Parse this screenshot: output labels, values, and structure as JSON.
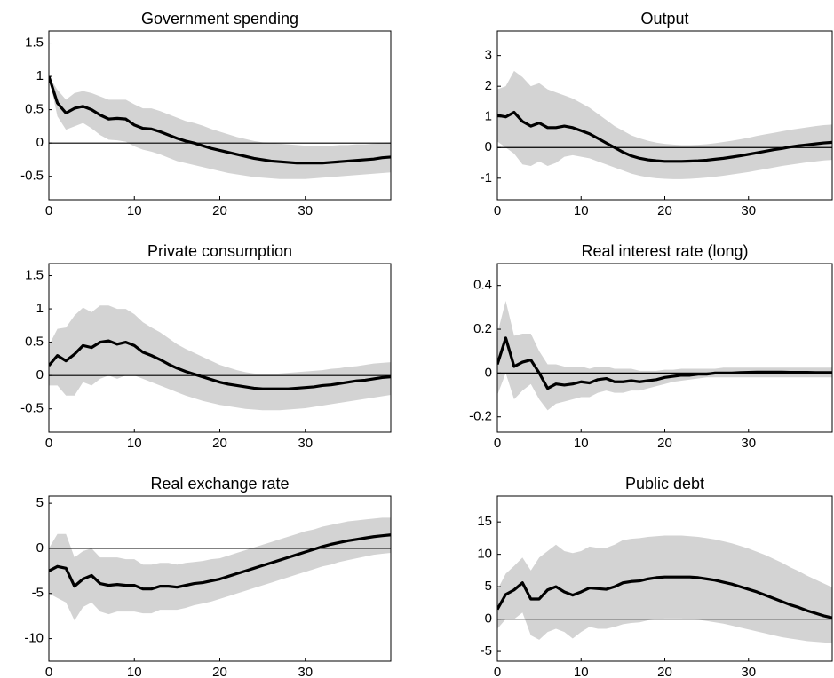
{
  "chart_data": [
    {
      "type": "line",
      "title": "Government spending",
      "color": "#000000",
      "band_color": "#d3d3d3",
      "reference_line": 0,
      "x": [
        0,
        1,
        2,
        3,
        4,
        5,
        6,
        7,
        8,
        9,
        10,
        11,
        12,
        13,
        14,
        15,
        16,
        17,
        18,
        19,
        20,
        21,
        22,
        23,
        24,
        25,
        26,
        27,
        28,
        29,
        30,
        31,
        32,
        33,
        34,
        35,
        36,
        37,
        38,
        39,
        40
      ],
      "values": [
        1,
        0.6,
        0.45,
        0.52,
        0.55,
        0.5,
        0.42,
        0.36,
        0.37,
        0.36,
        0.27,
        0.22,
        0.21,
        0.17,
        0.12,
        0.07,
        0.03,
        0,
        -0.04,
        -0.08,
        -0.11,
        -0.14,
        -0.17,
        -0.2,
        -0.23,
        -0.25,
        -0.27,
        -0.28,
        -0.29,
        -0.3,
        -0.3,
        -0.3,
        -0.3,
        -0.29,
        -0.28,
        -0.27,
        -0.26,
        -0.25,
        -0.24,
        -0.22,
        -0.21
      ],
      "lower": [
        1,
        0.4,
        0.2,
        0.25,
        0.3,
        0.22,
        0.12,
        0.05,
        0.04,
        0.02,
        -0.05,
        -0.1,
        -0.13,
        -0.17,
        -0.22,
        -0.27,
        -0.3,
        -0.33,
        -0.36,
        -0.39,
        -0.42,
        -0.45,
        -0.47,
        -0.49,
        -0.51,
        -0.52,
        -0.53,
        -0.54,
        -0.54,
        -0.54,
        -0.54,
        -0.53,
        -0.52,
        -0.51,
        -0.5,
        -0.49,
        -0.48,
        -0.47,
        -0.46,
        -0.45,
        -0.44
      ],
      "upper": [
        1,
        0.8,
        0.65,
        0.75,
        0.78,
        0.75,
        0.7,
        0.65,
        0.65,
        0.65,
        0.58,
        0.52,
        0.52,
        0.48,
        0.43,
        0.38,
        0.33,
        0.3,
        0.26,
        0.21,
        0.17,
        0.13,
        0.09,
        0.06,
        0.03,
        0.01,
        0,
        -0.01,
        -0.02,
        -0.03,
        -0.04,
        -0.04,
        -0.04,
        -0.04,
        -0.03,
        -0.03,
        -0.02,
        -0.02,
        -0.01,
        0,
        0.01
      ],
      "xlim": [
        0,
        40
      ],
      "xticks": [
        0,
        10,
        20,
        30
      ],
      "ylim": [
        -0.85,
        1.68
      ],
      "yticks": [
        -0.5,
        0,
        0.5,
        1,
        1.5
      ]
    },
    {
      "type": "line",
      "title": "Output",
      "color": "#000000",
      "band_color": "#d3d3d3",
      "reference_line": 0,
      "x": [
        0,
        1,
        2,
        3,
        4,
        5,
        6,
        7,
        8,
        9,
        10,
        11,
        12,
        13,
        14,
        15,
        16,
        17,
        18,
        19,
        20,
        21,
        22,
        23,
        24,
        25,
        26,
        27,
        28,
        29,
        30,
        31,
        32,
        33,
        34,
        35,
        36,
        37,
        38,
        39,
        40
      ],
      "values": [
        1.05,
        1.0,
        1.15,
        0.85,
        0.7,
        0.8,
        0.65,
        0.65,
        0.7,
        0.65,
        0.55,
        0.45,
        0.3,
        0.15,
        0,
        -0.15,
        -0.27,
        -0.35,
        -0.4,
        -0.43,
        -0.45,
        -0.45,
        -0.45,
        -0.44,
        -0.43,
        -0.41,
        -0.38,
        -0.35,
        -0.31,
        -0.27,
        -0.22,
        -0.17,
        -0.12,
        -0.07,
        -0.03,
        0.02,
        0.06,
        0.09,
        0.12,
        0.15,
        0.17
      ],
      "lower": [
        0.2,
        0,
        -0.2,
        -0.55,
        -0.6,
        -0.45,
        -0.6,
        -0.5,
        -0.3,
        -0.25,
        -0.3,
        -0.35,
        -0.45,
        -0.55,
        -0.65,
        -0.75,
        -0.85,
        -0.92,
        -0.97,
        -1.0,
        -1.02,
        -1.03,
        -1.03,
        -1.02,
        -1.0,
        -0.98,
        -0.95,
        -0.92,
        -0.88,
        -0.84,
        -0.8,
        -0.75,
        -0.7,
        -0.65,
        -0.6,
        -0.56,
        -0.52,
        -0.48,
        -0.45,
        -0.42,
        -0.4
      ],
      "upper": [
        1.9,
        2.0,
        2.5,
        2.3,
        2.0,
        2.1,
        1.9,
        1.8,
        1.7,
        1.6,
        1.45,
        1.3,
        1.1,
        0.9,
        0.7,
        0.55,
        0.4,
        0.3,
        0.22,
        0.16,
        0.12,
        0.1,
        0.08,
        0.08,
        0.09,
        0.11,
        0.14,
        0.18,
        0.22,
        0.27,
        0.32,
        0.38,
        0.43,
        0.48,
        0.53,
        0.58,
        0.62,
        0.66,
        0.7,
        0.73,
        0.75
      ],
      "xlim": [
        0,
        40
      ],
      "xticks": [
        0,
        10,
        20,
        30
      ],
      "ylim": [
        -1.7,
        3.8
      ],
      "yticks": [
        -1,
        0,
        1,
        2,
        3
      ]
    },
    {
      "type": "line",
      "title": "Private consumption",
      "color": "#000000",
      "band_color": "#d3d3d3",
      "reference_line": 0,
      "x": [
        0,
        1,
        2,
        3,
        4,
        5,
        6,
        7,
        8,
        9,
        10,
        11,
        12,
        13,
        14,
        15,
        16,
        17,
        18,
        19,
        20,
        21,
        22,
        23,
        24,
        25,
        26,
        27,
        28,
        29,
        30,
        31,
        32,
        33,
        34,
        35,
        36,
        37,
        38,
        39,
        40
      ],
      "values": [
        0.15,
        0.3,
        0.22,
        0.32,
        0.45,
        0.42,
        0.5,
        0.52,
        0.47,
        0.5,
        0.45,
        0.35,
        0.3,
        0.24,
        0.17,
        0.11,
        0.06,
        0.02,
        -0.02,
        -0.06,
        -0.1,
        -0.13,
        -0.15,
        -0.17,
        -0.19,
        -0.2,
        -0.2,
        -0.2,
        -0.2,
        -0.19,
        -0.18,
        -0.17,
        -0.15,
        -0.14,
        -0.12,
        -0.1,
        -0.08,
        -0.07,
        -0.05,
        -0.03,
        -0.02
      ],
      "lower": [
        -0.15,
        -0.15,
        -0.3,
        -0.3,
        -0.1,
        -0.15,
        -0.05,
        0,
        -0.05,
        0,
        0,
        -0.05,
        -0.1,
        -0.15,
        -0.2,
        -0.25,
        -0.3,
        -0.34,
        -0.38,
        -0.41,
        -0.44,
        -0.46,
        -0.48,
        -0.5,
        -0.51,
        -0.52,
        -0.52,
        -0.52,
        -0.51,
        -0.5,
        -0.49,
        -0.47,
        -0.45,
        -0.43,
        -0.41,
        -0.39,
        -0.37,
        -0.35,
        -0.33,
        -0.31,
        -0.29
      ],
      "upper": [
        0.45,
        0.7,
        0.72,
        0.9,
        1.02,
        0.95,
        1.05,
        1.05,
        1.0,
        1.0,
        0.92,
        0.8,
        0.72,
        0.65,
        0.56,
        0.47,
        0.4,
        0.34,
        0.28,
        0.22,
        0.16,
        0.12,
        0.08,
        0.05,
        0.03,
        0.02,
        0.02,
        0.03,
        0.04,
        0.05,
        0.06,
        0.07,
        0.08,
        0.1,
        0.11,
        0.13,
        0.14,
        0.16,
        0.18,
        0.19,
        0.2
      ],
      "xlim": [
        0,
        40
      ],
      "xticks": [
        0,
        10,
        20,
        30
      ],
      "ylim": [
        -0.85,
        1.68
      ],
      "yticks": [
        -0.5,
        0,
        0.5,
        1,
        1.5
      ]
    },
    {
      "type": "line",
      "title": "Real interest rate (long)",
      "color": "#000000",
      "band_color": "#d3d3d3",
      "reference_line": 0,
      "x": [
        0,
        1,
        2,
        3,
        4,
        5,
        6,
        7,
        8,
        9,
        10,
        11,
        12,
        13,
        14,
        15,
        16,
        17,
        18,
        19,
        20,
        21,
        22,
        23,
        24,
        25,
        26,
        27,
        28,
        29,
        30,
        31,
        32,
        33,
        34,
        35,
        36,
        37,
        38,
        39,
        40
      ],
      "values": [
        0.04,
        0.16,
        0.03,
        0.05,
        0.06,
        0.0,
        -0.07,
        -0.05,
        -0.055,
        -0.05,
        -0.04,
        -0.045,
        -0.03,
        -0.025,
        -0.04,
        -0.04,
        -0.035,
        -0.04,
        -0.035,
        -0.03,
        -0.02,
        -0.015,
        -0.01,
        -0.01,
        -0.005,
        -0.005,
        0,
        0,
        0,
        0.002,
        0.003,
        0.004,
        0.004,
        0.004,
        0.004,
        0.003,
        0.003,
        0.003,
        0.002,
        0.002,
        0.002
      ],
      "lower": [
        -0.1,
        0,
        -0.12,
        -0.08,
        -0.05,
        -0.12,
        -0.17,
        -0.14,
        -0.13,
        -0.12,
        -0.11,
        -0.11,
        -0.09,
        -0.08,
        -0.09,
        -0.09,
        -0.08,
        -0.08,
        -0.07,
        -0.06,
        -0.05,
        -0.04,
        -0.035,
        -0.03,
        -0.025,
        -0.02,
        -0.02,
        -0.02,
        -0.02,
        -0.02,
        -0.02,
        -0.02,
        -0.02,
        -0.02,
        -0.02,
        -0.02,
        -0.02,
        -0.02,
        -0.02,
        -0.02,
        -0.02
      ],
      "upper": [
        0.18,
        0.33,
        0.17,
        0.18,
        0.18,
        0.1,
        0.04,
        0.04,
        0.03,
        0.03,
        0.03,
        0.02,
        0.03,
        0.03,
        0.02,
        0.02,
        0.02,
        0.01,
        0.01,
        0.01,
        0.015,
        0.015,
        0.02,
        0.02,
        0.02,
        0.02,
        0.02,
        0.025,
        0.025,
        0.025,
        0.025,
        0.025,
        0.025,
        0.025,
        0.025,
        0.025,
        0.025,
        0.025,
        0.025,
        0.025,
        0.025
      ],
      "xlim": [
        0,
        40
      ],
      "xticks": [
        0,
        10,
        20,
        30
      ],
      "ylim": [
        -0.27,
        0.5
      ],
      "yticks": [
        -0.2,
        0,
        0.2,
        0.4
      ]
    },
    {
      "type": "line",
      "title": "Real exchange rate",
      "color": "#000000",
      "band_color": "#d3d3d3",
      "reference_line": 0,
      "x": [
        0,
        1,
        2,
        3,
        4,
        5,
        6,
        7,
        8,
        9,
        10,
        11,
        12,
        13,
        14,
        15,
        16,
        17,
        18,
        19,
        20,
        21,
        22,
        23,
        24,
        25,
        26,
        27,
        28,
        29,
        30,
        31,
        32,
        33,
        34,
        35,
        36,
        37,
        38,
        39,
        40
      ],
      "values": [
        -2.5,
        -2,
        -2.2,
        -4.2,
        -3.4,
        -3,
        -3.9,
        -4.1,
        -4,
        -4.1,
        -4.1,
        -4.5,
        -4.5,
        -4.2,
        -4.2,
        -4.3,
        -4.1,
        -3.9,
        -3.8,
        -3.6,
        -3.4,
        -3.1,
        -2.8,
        -2.5,
        -2.2,
        -1.9,
        -1.6,
        -1.3,
        -1,
        -0.7,
        -0.4,
        -0.1,
        0.2,
        0.45,
        0.65,
        0.85,
        1.0,
        1.15,
        1.3,
        1.4,
        1.5
      ],
      "lower": [
        -5,
        -5.5,
        -6,
        -8,
        -6.5,
        -6,
        -7,
        -7.3,
        -7,
        -7,
        -7,
        -7.2,
        -7.2,
        -6.8,
        -6.8,
        -6.8,
        -6.6,
        -6.3,
        -6.1,
        -5.9,
        -5.6,
        -5.3,
        -5,
        -4.7,
        -4.4,
        -4.1,
        -3.8,
        -3.5,
        -3.2,
        -2.9,
        -2.6,
        -2.3,
        -2,
        -1.8,
        -1.5,
        -1.3,
        -1.1,
        -0.9,
        -0.7,
        -0.6,
        -0.5
      ],
      "upper": [
        0,
        1.6,
        1.6,
        -1,
        -0.3,
        0,
        -1,
        -1,
        -1,
        -1.2,
        -1.2,
        -1.8,
        -1.8,
        -1.6,
        -1.6,
        -1.8,
        -1.6,
        -1.5,
        -1.4,
        -1.2,
        -1.1,
        -0.8,
        -0.5,
        -0.2,
        0.1,
        0.4,
        0.7,
        1.0,
        1.3,
        1.6,
        1.9,
        2.1,
        2.4,
        2.6,
        2.8,
        3.0,
        3.1,
        3.2,
        3.3,
        3.4,
        3.4
      ],
      "xlim": [
        0,
        40
      ],
      "xticks": [
        0,
        10,
        20,
        30
      ],
      "ylim": [
        -12.5,
        5.8
      ],
      "yticks": [
        -10,
        -5,
        0,
        5
      ]
    },
    {
      "type": "line",
      "title": "Public debt",
      "color": "#000000",
      "band_color": "#d3d3d3",
      "reference_line": 0,
      "x": [
        0,
        1,
        2,
        3,
        4,
        5,
        6,
        7,
        8,
        9,
        10,
        11,
        12,
        13,
        14,
        15,
        16,
        17,
        18,
        19,
        20,
        21,
        22,
        23,
        24,
        25,
        26,
        27,
        28,
        29,
        30,
        31,
        32,
        33,
        34,
        35,
        36,
        37,
        38,
        39,
        40
      ],
      "values": [
        1.5,
        3.8,
        4.5,
        5.6,
        3.1,
        3.1,
        4.5,
        5,
        4.2,
        3.7,
        4.2,
        4.8,
        4.7,
        4.6,
        5,
        5.6,
        5.8,
        5.9,
        6.2,
        6.4,
        6.5,
        6.5,
        6.5,
        6.5,
        6.4,
        6.2,
        6,
        5.7,
        5.4,
        5,
        4.6,
        4.2,
        3.7,
        3.2,
        2.7,
        2.2,
        1.8,
        1.3,
        0.9,
        0.5,
        0.2
      ],
      "lower": [
        -1.5,
        0,
        0,
        1,
        -2.5,
        -3.2,
        -2,
        -1.5,
        -2,
        -3,
        -2,
        -1.2,
        -1.5,
        -1.5,
        -1.2,
        -0.8,
        -0.6,
        -0.5,
        -0.2,
        0,
        0.1,
        0.1,
        0.1,
        0,
        -0.1,
        -0.3,
        -0.5,
        -0.7,
        -1,
        -1.3,
        -1.6,
        -1.9,
        -2.2,
        -2.5,
        -2.8,
        -3.0,
        -3.2,
        -3.4,
        -3.5,
        -3.6,
        -3.7
      ],
      "upper": [
        4.5,
        7,
        8.2,
        9.5,
        7.5,
        9.5,
        10.5,
        11.5,
        10.5,
        10.2,
        10.5,
        11.2,
        11,
        11,
        11.5,
        12.2,
        12.4,
        12.5,
        12.7,
        12.8,
        12.9,
        12.9,
        12.9,
        12.8,
        12.7,
        12.5,
        12.3,
        12,
        11.7,
        11.3,
        10.9,
        10.4,
        9.9,
        9.3,
        8.7,
        8,
        7.4,
        6.7,
        6.1,
        5.5,
        4.9
      ],
      "xlim": [
        0,
        40
      ],
      "xticks": [
        0,
        10,
        20,
        30
      ],
      "ylim": [
        -6.5,
        19
      ],
      "yticks": [
        -5,
        0,
        5,
        10,
        15
      ]
    }
  ]
}
